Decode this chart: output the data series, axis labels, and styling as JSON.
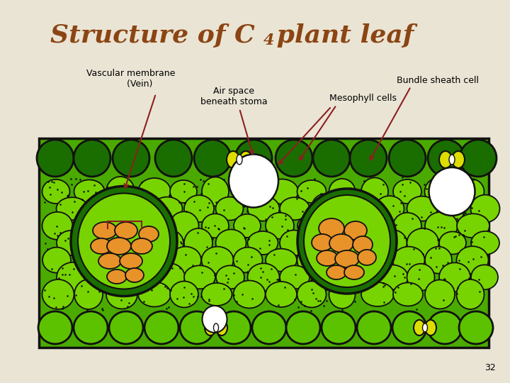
{
  "title_color": "#8B4513",
  "title_fontsize": 28,
  "bg_color": "#EAE4D5",
  "slide_num": "32",
  "label1_text": "Vascular membrane\n     (Vein)",
  "label2_text": "Bundle sheath cell",
  "label3_text": "Air space\nbeneath stoma",
  "label4_text": "Mesophyll cells",
  "label_fontsize": 9,
  "dark_green": "#1a6e00",
  "mid_green": "#4aaa00",
  "light_green": "#78d400",
  "bright_green": "#5cc200",
  "orange_fill": "#e8922a",
  "yellow_fill": "#dddd00",
  "white_fill": "#ffffff",
  "black": "#111111",
  "arrow_color": "#8B2020"
}
